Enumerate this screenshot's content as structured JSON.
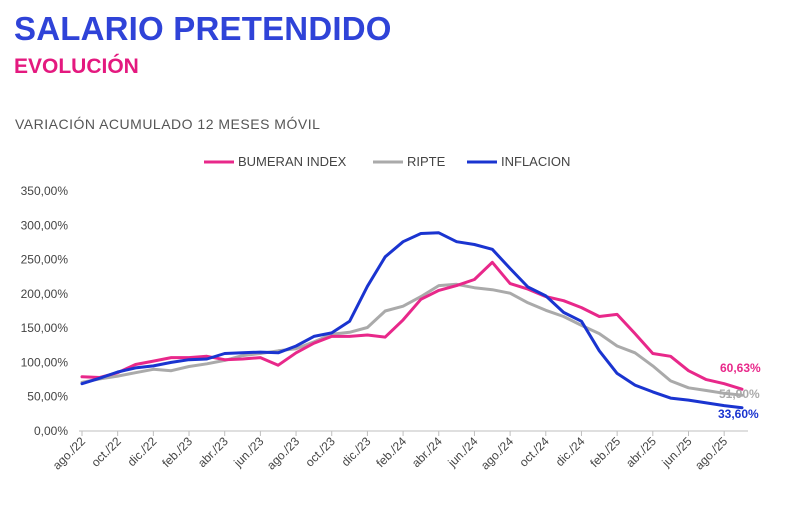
{
  "header": {
    "title": "SALARIO PRETENDIDO",
    "subtitle": "EVOLUCIÓN"
  },
  "colors": {
    "title": "#2f43d8",
    "subtitle": "#e4197f",
    "bumeran": "#e8288a",
    "ripte": "#aaaaaa",
    "inflacion": "#1a34d0"
  },
  "chart_data": {
    "type": "line",
    "title": "VARIACIÓN ACUMULADO 12 MESES MÓVIL",
    "xlabel": "",
    "ylabel": "",
    "ylim": [
      0,
      350
    ],
    "yticks": [
      0,
      50,
      100,
      150,
      200,
      250,
      300,
      350
    ],
    "ytick_labels": [
      "0,00%",
      "50,00%",
      "100,00%",
      "150,00%",
      "200,00%",
      "250,00%",
      "300,00%",
      "350,00%"
    ],
    "grid": false,
    "legend_position": "top",
    "x_labels": [
      "ago./22",
      "oct./22",
      "dic./22",
      "feb./23",
      "abr./23",
      "jun./23",
      "ago./23",
      "oct./23",
      "dic./23",
      "feb./24",
      "abr./24",
      "jun./24",
      "ago./24",
      "oct./24",
      "dic./24",
      "feb./25",
      "abr./25",
      "jun./25",
      "ago./25"
    ],
    "x_label_every": 2,
    "series": [
      {
        "name": "BUMERAN INDEX",
        "color": "#e8288a",
        "values": [
          79,
          78,
          85,
          97,
          102,
          107,
          107,
          109,
          104,
          105,
          107,
          96,
          114,
          128,
          138,
          138,
          140,
          137,
          162,
          192,
          205,
          212,
          221,
          246,
          215,
          207,
          196,
          190,
          180,
          167,
          170,
          142,
          113,
          109,
          88,
          75,
          69,
          61
        ],
        "end_label": "60,63%"
      },
      {
        "name": "RIPTE",
        "color": "#aaaaaa",
        "values": [
          71,
          76,
          80,
          85,
          90,
          88,
          94,
          98,
          103,
          110,
          113,
          117,
          120,
          130,
          141,
          144,
          151,
          175,
          182,
          196,
          212,
          214,
          209,
          206,
          201,
          187,
          176,
          167,
          154,
          142,
          124,
          114,
          95,
          73,
          63,
          59,
          55,
          52
        ],
        "end_label": "51,90%"
      },
      {
        "name": "INFLACION",
        "color": "#1a34d0",
        "values": [
          69,
          77,
          86,
          92,
          95,
          100,
          104,
          105,
          113,
          114,
          115,
          114,
          124,
          138,
          143,
          160,
          211,
          254,
          276,
          288,
          289,
          276,
          272,
          265,
          237,
          210,
          197,
          173,
          160,
          117,
          84,
          67,
          57,
          48,
          45,
          41,
          37,
          34
        ],
        "end_label": "33,60%"
      }
    ]
  }
}
